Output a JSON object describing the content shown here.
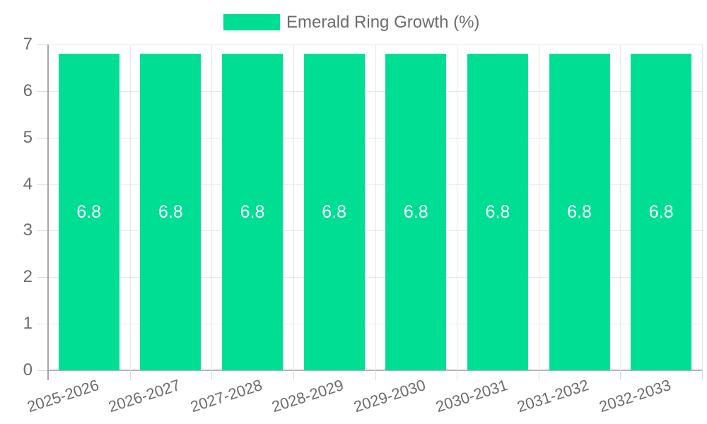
{
  "chart_data": {
    "type": "bar",
    "title": "",
    "categories": [
      "2025-2026",
      "2026-2027",
      "2027-2028",
      "2028-2029",
      "2029-2030",
      "2030-2031",
      "2031-2032",
      "2032-2033"
    ],
    "series": [
      {
        "name": "Emerald Ring Growth (%)",
        "values": [
          6.8,
          6.8,
          6.8,
          6.8,
          6.8,
          6.8,
          6.8,
          6.8
        ],
        "data_labels": [
          "6.8",
          "6.8",
          "6.8",
          "6.8",
          "6.8",
          "6.8",
          "6.8",
          "6.8"
        ]
      }
    ],
    "legend": {
      "label": "Emerald Ring Growth (%)",
      "position": "top"
    },
    "xlabel": "",
    "ylabel": "",
    "ylim": [
      0,
      7
    ],
    "yticks": [
      0,
      1,
      2,
      3,
      4,
      5,
      6,
      7
    ],
    "grid": true,
    "colors": {
      "bar": "#00DE94",
      "bar_label_text": "#ffffff",
      "axis_text": "#6c6c6c",
      "legend_text": "#6c6c6c",
      "gridline": "#e7e7e7",
      "y_axis_line": "#a5a5a5",
      "x_axis_line": "#b5b5b5",
      "tick": "#dcdcdc"
    }
  }
}
